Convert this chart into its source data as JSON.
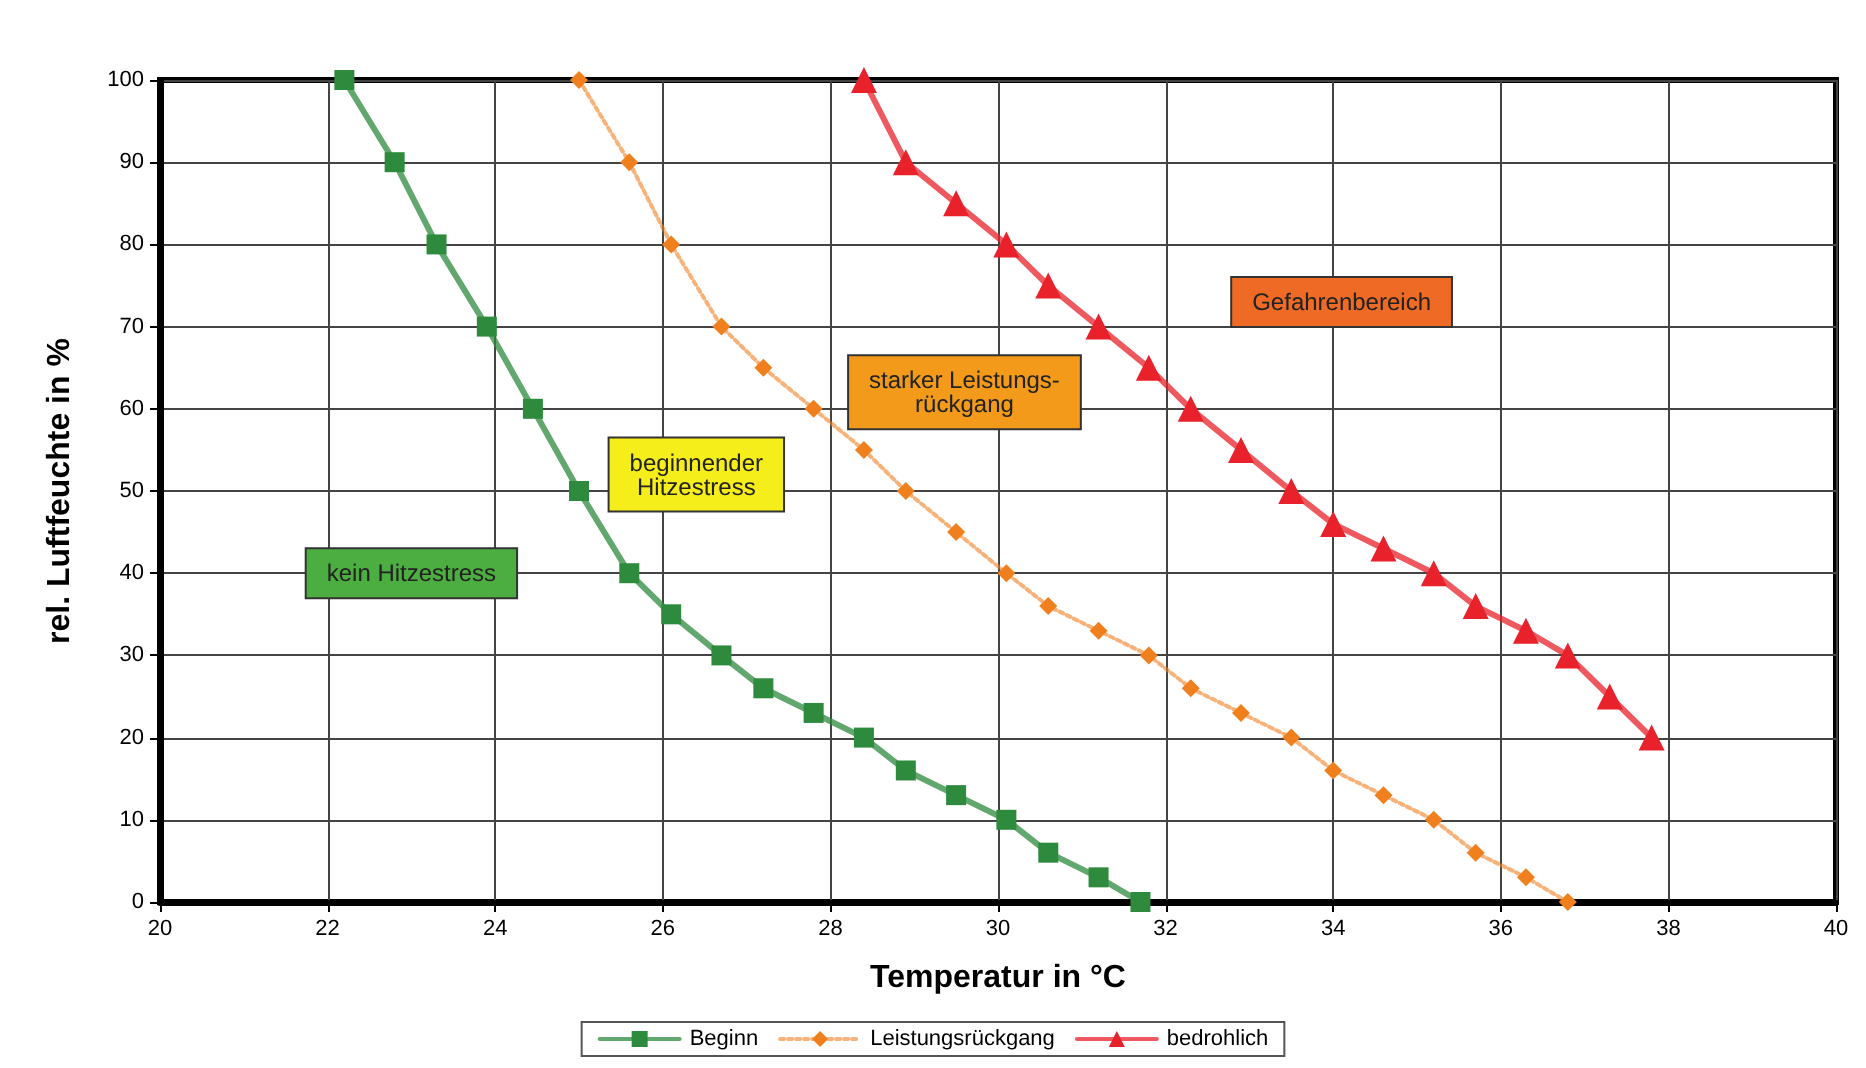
{
  "chart_data": {
    "type": "line",
    "xlabel": "Temperatur in °C",
    "ylabel": "rel. Luftfeuchte in %",
    "xlim": [
      20,
      40
    ],
    "xticks": [
      20,
      22,
      24,
      26,
      28,
      30,
      32,
      34,
      36,
      38,
      40
    ],
    "ylim": [
      0,
      100
    ],
    "yticks": [
      0,
      10,
      20,
      30,
      40,
      50,
      60,
      70,
      80,
      90,
      100
    ],
    "grid": true,
    "legend": "bottom",
    "annotations": [
      "kein Hitzestress",
      "beginnender\nHitzestress",
      "starker Leistungs-\nrückgang",
      "Gefahrenbereich"
    ],
    "series": [
      {
        "name": "Beginn",
        "color": "#2e8b3e",
        "marker": "square",
        "line_style": "solid",
        "x": [
          22.2,
          22.8,
          23.3,
          23.9,
          24.45,
          25,
          25.6,
          26.1,
          26.7,
          27.2,
          27.8,
          28.4,
          28.9,
          29.5,
          30.1,
          30.6,
          31.2,
          31.7
        ],
        "values": [
          100,
          90,
          80,
          70,
          60,
          50,
          40,
          35,
          30,
          26,
          23,
          20,
          16,
          13,
          10,
          6,
          3,
          0
        ]
      },
      {
        "name": "Leistungsrückgang",
        "color": "#f07f1e",
        "marker": "diamond",
        "line_style": "dotted",
        "x": [
          25,
          25.6,
          26.1,
          26.7,
          27.2,
          27.8,
          28.4,
          28.9,
          29.5,
          30.1,
          30.6,
          31.2,
          31.8,
          32.3,
          32.9,
          33.5,
          34,
          34.6,
          35.2,
          35.7,
          36.3,
          36.8
        ],
        "values": [
          100,
          90,
          80,
          70,
          65,
          60,
          55,
          50,
          45,
          40,
          36,
          33,
          30,
          26,
          23,
          20,
          16,
          13,
          10,
          6,
          3,
          0
        ]
      },
      {
        "name": "bedrohlich",
        "color": "#e8212a",
        "marker": "triangle",
        "line_style": "solid",
        "x": [
          28.4,
          28.9,
          29.5,
          30.1,
          30.6,
          31.2,
          31.8,
          32.3,
          32.9,
          33.5,
          34,
          34.6,
          35.2,
          35.7,
          36.3,
          36.8,
          37.3,
          37.8
        ],
        "values": [
          100,
          90,
          85,
          80,
          75,
          70,
          65,
          60,
          55,
          50,
          46,
          43,
          40,
          36,
          33,
          30,
          25,
          20
        ]
      }
    ]
  }
}
